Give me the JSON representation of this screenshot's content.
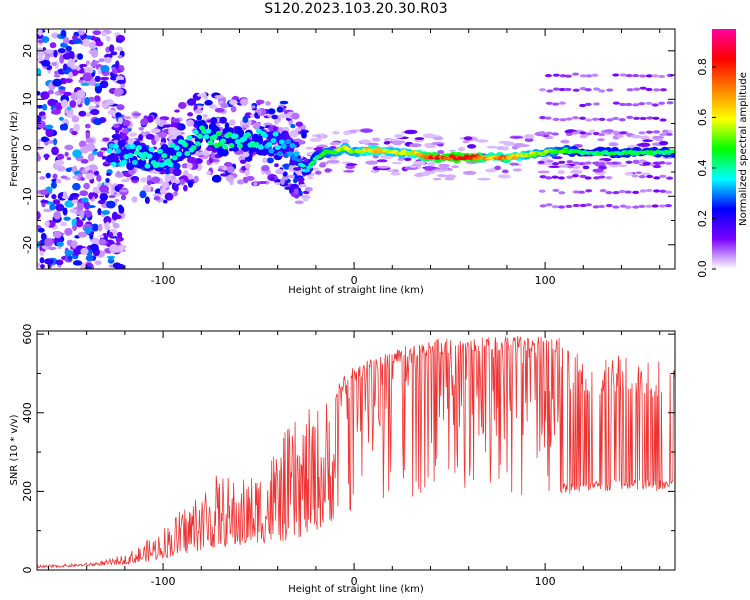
{
  "title": "S120.2023.103.20.30.R03",
  "chart_data": [
    {
      "type": "heatmap",
      "xlabel": "Height of straight line (km)",
      "ylabel": "Frequency (Hz)",
      "xlim": [
        -166,
        168
      ],
      "ylim": [
        -25,
        24.5
      ],
      "x_ticks": [
        -100,
        0,
        100
      ],
      "y_ticks": [
        -20,
        -10,
        0,
        10,
        20
      ],
      "colorbar": {
        "label": "Normalized spectral amplitude",
        "range": [
          0,
          0.95
        ],
        "ticks": [
          "0.0",
          "0.2",
          "0.4",
          "0.6",
          "0.8"
        ],
        "colors": [
          "#ffffff",
          "#7a00ff",
          "#0000ff",
          "#00ffff",
          "#00ff00",
          "#ffff00",
          "#ff8000",
          "#ff0000",
          "#ff00a0"
        ]
      },
      "ridge": {
        "x": [
          -125,
          -110,
          -100,
          -90,
          -80,
          -70,
          -60,
          -50,
          -40,
          -35,
          -30,
          -25,
          -20,
          -15,
          -10,
          -5,
          0,
          10,
          20,
          30,
          40,
          50,
          60,
          70,
          80,
          90,
          100,
          110,
          120,
          130,
          140,
          150,
          160,
          168
        ],
        "frequency": [
          -1.5,
          -1.8,
          -2.5,
          0,
          3,
          1.5,
          1.5,
          1.5,
          1,
          0,
          -2,
          -5,
          -2,
          -1,
          -1,
          0,
          -1,
          -0.5,
          -1,
          -1,
          -2,
          -2,
          -2,
          -2,
          -2,
          -1.5,
          -1,
          -0.5,
          -1,
          -1,
          -1,
          -1,
          -1,
          -1
        ],
        "amplitude": [
          0.35,
          0.4,
          0.4,
          0.38,
          0.42,
          0.42,
          0.4,
          0.4,
          0.35,
          0.3,
          0.32,
          0.4,
          0.45,
          0.5,
          0.55,
          0.6,
          0.55,
          0.7,
          0.6,
          0.62,
          0.82,
          0.85,
          0.9,
          0.7,
          0.75,
          0.6,
          0.55,
          0.5,
          0.42,
          0.45,
          0.45,
          0.45,
          0.45,
          0.45
        ]
      }
    },
    {
      "type": "line",
      "xlabel": "Height of straight line (km)",
      "ylabel": "SNR (10 * v/v)",
      "xlim": [
        -166,
        168
      ],
      "ylim": [
        0,
        608
      ],
      "x_ticks": [
        -100,
        0,
        100
      ],
      "y_ticks": [
        0,
        200,
        400,
        600
      ],
      "series": [
        {
          "color": "#ee3333",
          "envelope_x": [
            -166,
            -150,
            -140,
            -130,
            -120,
            -110,
            -100,
            -90,
            -80,
            -70,
            -60,
            -50,
            -40,
            -30,
            -20,
            -10,
            0,
            10,
            20,
            30,
            40,
            50,
            60,
            70,
            80,
            90,
            100,
            108,
            110,
            120,
            140,
            160,
            168
          ],
          "envelope_low": [
            5,
            8,
            10,
            12,
            15,
            20,
            30,
            40,
            50,
            60,
            60,
            70,
            70,
            80,
            100,
            130,
            150,
            170,
            180,
            185,
            190,
            190,
            190,
            190,
            190,
            190,
            195,
            195,
            190,
            195,
            200,
            200,
            205
          ],
          "envelope_high": [
            12,
            15,
            18,
            25,
            40,
            70,
            110,
            160,
            220,
            250,
            230,
            260,
            330,
            390,
            420,
            470,
            520,
            540,
            560,
            575,
            585,
            590,
            592,
            595,
            597,
            595,
            595,
            590,
            570,
            560,
            550,
            540,
            545
          ]
        }
      ]
    }
  ]
}
